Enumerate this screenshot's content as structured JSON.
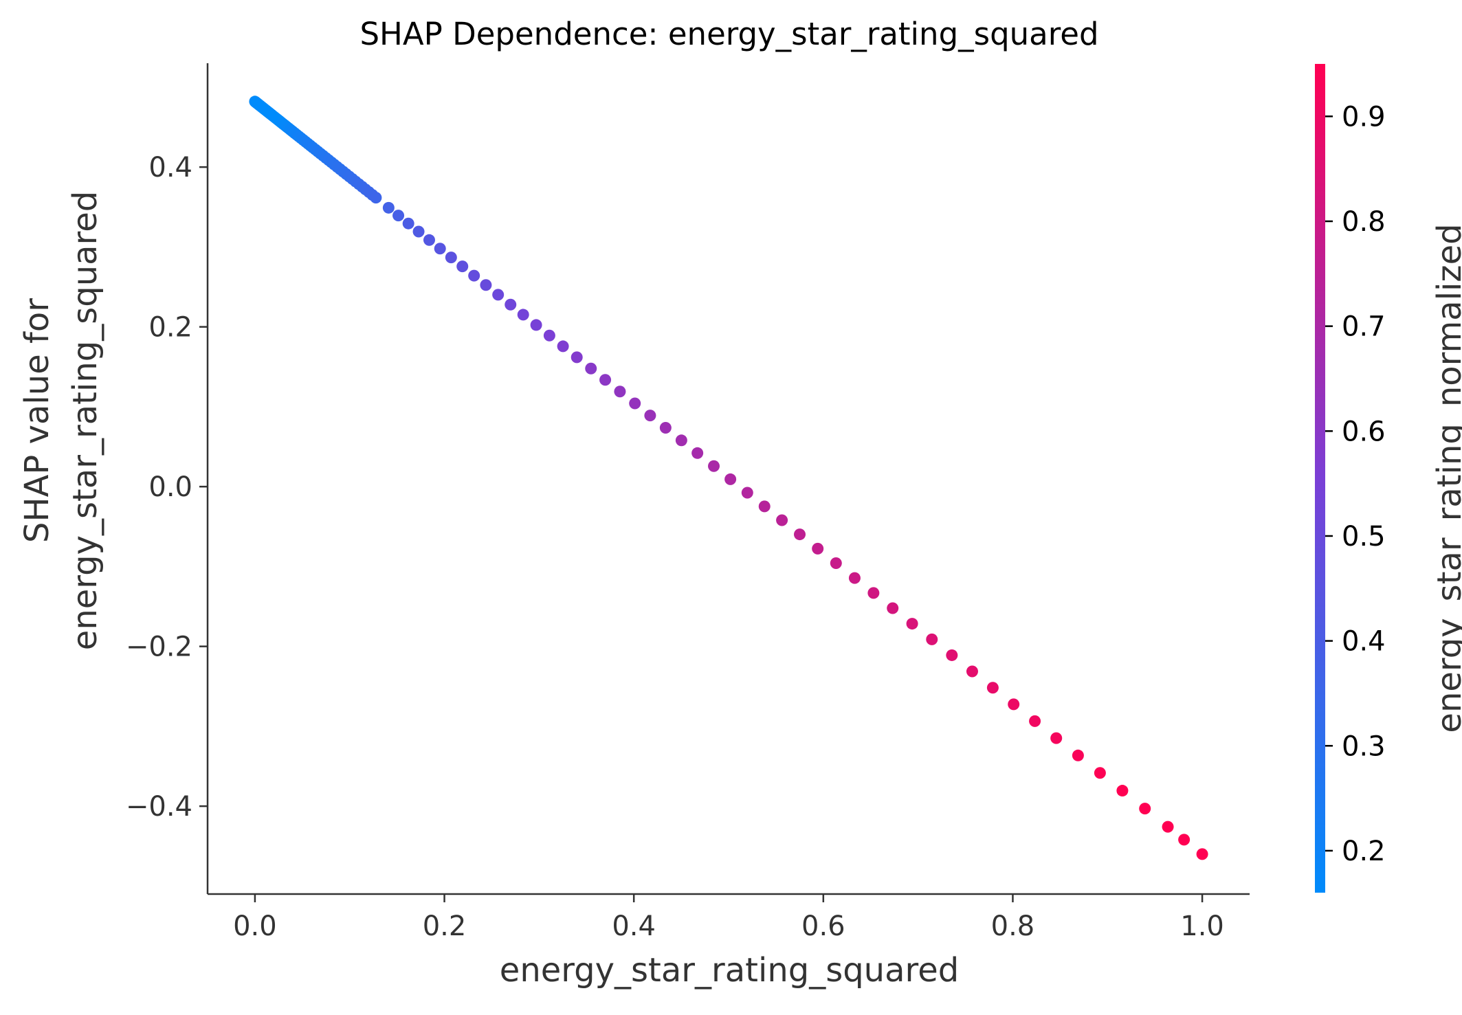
{
  "chart_data": {
    "type": "scatter",
    "title": "SHAP Dependence: energy_star_rating_squared",
    "xlabel": "energy_star_rating_squared",
    "ylabel_line1": "SHAP value for",
    "ylabel_line2": "energy_star_rating_squared",
    "colorbar_label": "energy_star_rating_normalized",
    "xlim": [
      -0.05,
      1.05
    ],
    "ylim": [
      -0.51,
      0.53
    ],
    "x_ticks": [
      0.0,
      0.2,
      0.4,
      0.6,
      0.8,
      1.0
    ],
    "x_tick_labels": [
      "0.0",
      "0.2",
      "0.4",
      "0.6",
      "0.8",
      "1.0"
    ],
    "y_ticks": [
      0.4,
      0.2,
      0.0,
      -0.2,
      -0.4
    ],
    "y_tick_labels": [
      "0.4",
      "0.2",
      "0.0",
      "−0.2",
      "−0.4"
    ],
    "colorbar_range": [
      0.16,
      0.95
    ],
    "colorbar_ticks": [
      0.9,
      0.8,
      0.7,
      0.6,
      0.5,
      0.4,
      0.3,
      0.2
    ],
    "colorbar_tick_labels": [
      "0.9",
      "0.8",
      "0.7",
      "0.6",
      "0.5",
      "0.4",
      "0.3",
      "0.2"
    ],
    "colors": {
      "low": "#008bfb",
      "mid": "#7a3fd6",
      "high": "#ff0052",
      "axis": "#333333"
    },
    "point_model": {
      "color_value": "sqrt(x)",
      "y_intercept": 0.482,
      "y_slope": -0.942
    },
    "points_x": [
      0.0,
      0.0006,
      0.0013,
      0.002,
      0.0028,
      0.0036,
      0.0045,
      0.0055,
      0.0065,
      0.0075,
      0.0086,
      0.0098,
      0.011,
      0.0123,
      0.0136,
      0.015,
      0.0164,
      0.0179,
      0.0194,
      0.021,
      0.0226,
      0.0243,
      0.0261,
      0.0279,
      0.0297,
      0.0316,
      0.0335,
      0.0355,
      0.0376,
      0.0397,
      0.0419,
      0.0441,
      0.0464,
      0.0487,
      0.0511,
      0.0535,
      0.056,
      0.0585,
      0.0611,
      0.0638,
      0.0665,
      0.0692,
      0.072,
      0.0749,
      0.0778,
      0.0807,
      0.0837,
      0.0868,
      0.0899,
      0.0931,
      0.0963,
      0.0996,
      0.1029,
      0.1063,
      0.1097,
      0.1132,
      0.1167,
      0.1203,
      0.124,
      0.1277,
      0.1411,
      0.1514,
      0.162,
      0.1728,
      0.184,
      0.1954,
      0.2071,
      0.219,
      0.2313,
      0.2438,
      0.2567,
      0.2698,
      0.2832,
      0.2969,
      0.3109,
      0.3252,
      0.3398,
      0.3547,
      0.3698,
      0.3853,
      0.4011,
      0.4172,
      0.4335,
      0.4502,
      0.4671,
      0.4844,
      0.5019,
      0.5198,
      0.5379,
      0.5563,
      0.5751,
      0.5941,
      0.6134,
      0.6331,
      0.653,
      0.6732,
      0.6938,
      0.7146,
      0.7357,
      0.7572,
      0.7789,
      0.8009,
      0.8233,
      0.8459,
      0.8689,
      0.8921,
      0.9157,
      0.9395,
      0.9637,
      0.9808,
      1.0
    ]
  }
}
